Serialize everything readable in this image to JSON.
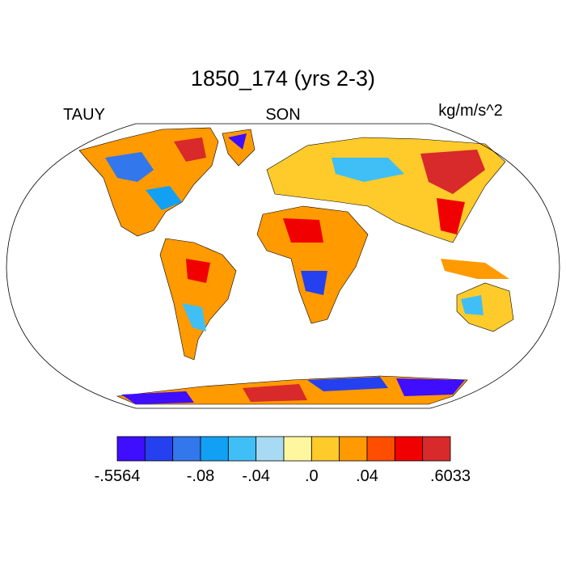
{
  "title": "1850_174 (yrs 2-3)",
  "left_label": "TAUY",
  "center_label": "SON",
  "right_label": "kg/m/s^2",
  "colorbar": {
    "colors": [
      "#3f0dff",
      "#2540ee",
      "#3277ec",
      "#12a0f5",
      "#3fbff5",
      "#a8dbf3",
      "#fff7a0",
      "#ffcb2a",
      "#ff9a00",
      "#ff4e00",
      "#f00000",
      "#d8292b"
    ],
    "ticks": [
      {
        "value": -0.5564,
        "label": "-.5564"
      },
      {
        "value": -0.08,
        "label": "-.08"
      },
      {
        "value": -0.04,
        "label": "-.04"
      },
      {
        "value": 0,
        "label": ".0"
      },
      {
        "value": 0.04,
        "label": ".04"
      },
      {
        "value": 0.6033,
        "label": ".6033"
      }
    ]
  }
}
